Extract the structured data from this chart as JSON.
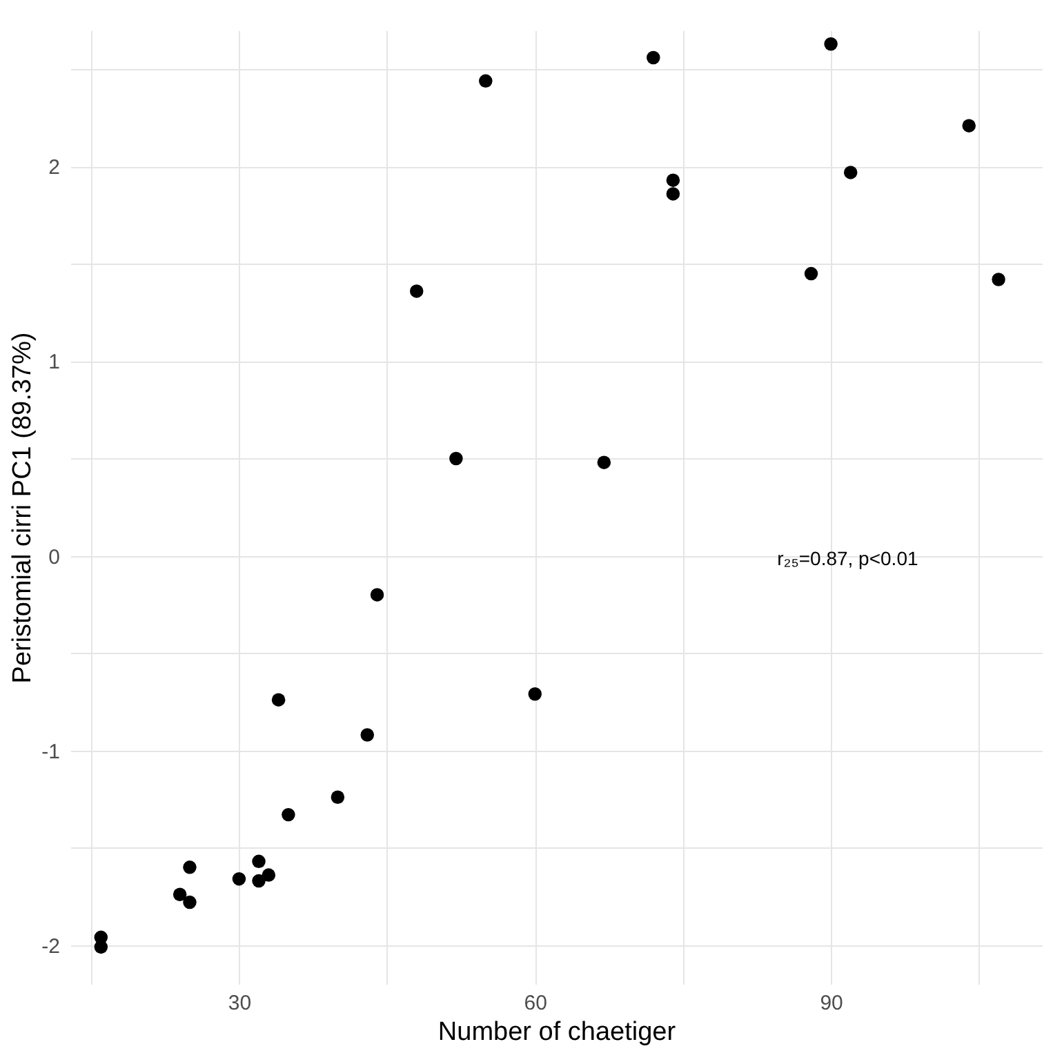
{
  "chart_data": {
    "type": "scatter",
    "xlabel": "Number of chaetiger",
    "ylabel": "Peristomial cirri PC1 (89.37%)",
    "x": [
      16,
      16,
      24,
      25,
      25,
      30,
      32,
      32,
      33,
      34,
      35,
      40,
      43,
      44,
      48,
      52,
      55,
      60,
      67,
      72,
      74,
      74,
      88,
      90,
      92,
      104,
      107
    ],
    "series": [
      {
        "color": "#000000",
        "values": [
          -1.96,
          -2.01,
          -1.74,
          -1.6,
          -1.78,
          -1.66,
          -1.57,
          -1.67,
          -1.64,
          -0.74,
          -1.33,
          -1.24,
          -0.92,
          -0.2,
          1.36,
          0.5,
          2.44,
          -0.71,
          0.48,
          2.56,
          1.93,
          1.86,
          1.45,
          2.63,
          1.97,
          2.21,
          1.42
        ]
      }
    ],
    "xlim": [
      12.9,
      111.4
    ],
    "ylim": [
      -2.2,
      2.7
    ],
    "xticks": [
      {
        "value": 15,
        "label": null
      },
      30,
      {
        "value": 45,
        "label": null
      },
      60,
      {
        "value": 75,
        "label": null
      },
      90,
      {
        "value": 105,
        "label": null
      }
    ],
    "yticks": [
      -2,
      {
        "value": -1.5,
        "label": null
      },
      -1,
      {
        "value": -0.5,
        "label": null
      },
      0,
      {
        "value": 0.5,
        "label": null
      },
      1,
      {
        "value": 1.5,
        "label": null
      },
      2,
      {
        "value": 2.5,
        "label": null
      }
    ],
    "grid": true,
    "marker": "circle",
    "annotations": [
      "r₂₅=0.87, p<0.01"
    ]
  }
}
